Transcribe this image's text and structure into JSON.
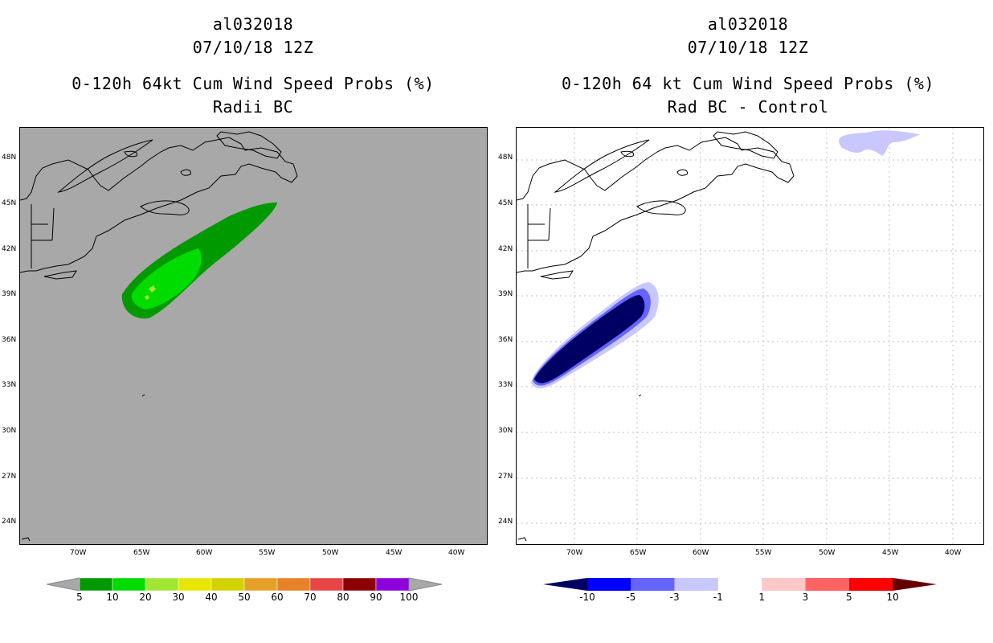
{
  "left": {
    "title_lines": [
      "al032018",
      "07/10/18 12Z",
      "0-120h 64kt Cum Wind Speed Probs (%)",
      "Radii BC"
    ],
    "background_color": "#a8a8a8",
    "colorbar": {
      "labels": [
        "5",
        "10",
        "20",
        "30",
        "40",
        "50",
        "60",
        "70",
        "80",
        "90",
        "100"
      ],
      "colors": [
        "#009a00",
        "#00dc00",
        "#a0e632",
        "#e6e600",
        "#d2d200",
        "#e6a028",
        "#e68228",
        "#e64646",
        "#8c0000",
        "#8c00dc"
      ],
      "end_color": "#a8a8a8"
    }
  },
  "right": {
    "title_lines": [
      "al032018",
      "07/10/18 12Z",
      "0-120h 64 kt Cum Wind Speed Probs (%)",
      "Rad BC - Control"
    ],
    "background_color": "#ffffff",
    "colorbar": {
      "labels": [
        "-10",
        "-5",
        "-3",
        "-1",
        "1",
        "3",
        "5",
        "10"
      ],
      "colors": [
        "#0000ff",
        "#6464ff",
        "#c8c8ff",
        "#ffffff",
        "#ffc8c8",
        "#ff6464",
        "#ff0000"
      ],
      "low_end_color": "#000064",
      "high_end_color": "#640000"
    }
  },
  "map": {
    "lat_labels": [
      "48N",
      "45N",
      "42N",
      "39N",
      "36N",
      "33N",
      "30N",
      "27N",
      "24N"
    ],
    "lon_labels": [
      "70W",
      "65W",
      "60W",
      "55W",
      "50W",
      "45W",
      "40W"
    ]
  }
}
